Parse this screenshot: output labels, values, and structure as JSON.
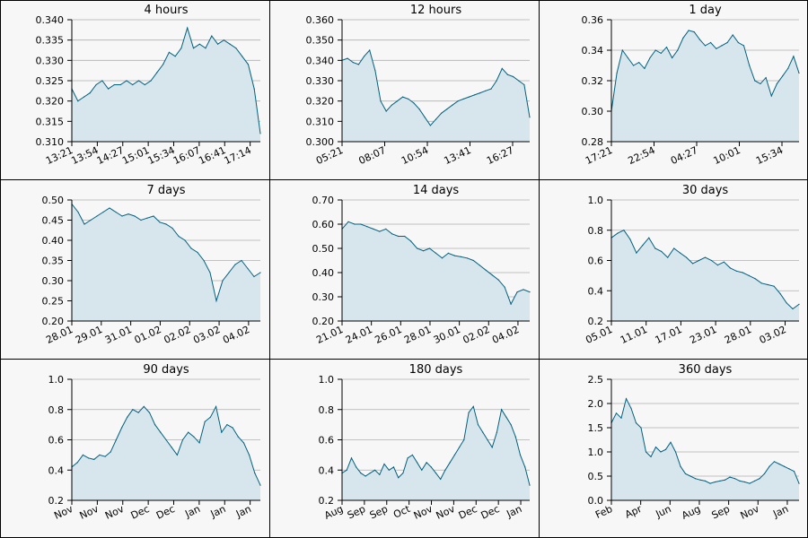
{
  "style": {
    "fill": "#d7e6ed",
    "line": "#00607f",
    "grid": "#b0b0b0",
    "axis": "#000000",
    "background": "#f7f7f7"
  },
  "chart_data": [
    {
      "type": "area",
      "title": "4 hours",
      "ylim": [
        0.31,
        0.34
      ],
      "yticks": [
        0.31,
        0.315,
        0.32,
        0.325,
        0.33,
        0.335,
        0.34
      ],
      "ytick_decimals": 3,
      "xticks": [
        "13:21",
        "13:54",
        "14:27",
        "15:01",
        "15:34",
        "16:07",
        "16:41",
        "17:14"
      ],
      "x": [
        0,
        1,
        2,
        3,
        4,
        5,
        6,
        7,
        8,
        9,
        10,
        11,
        12,
        13,
        14,
        15,
        16,
        17,
        18,
        19,
        20,
        21,
        22,
        23,
        24,
        25,
        26,
        27,
        28,
        29,
        30,
        31
      ],
      "values": [
        0.323,
        0.32,
        0.321,
        0.322,
        0.324,
        0.325,
        0.323,
        0.324,
        0.324,
        0.325,
        0.324,
        0.325,
        0.324,
        0.325,
        0.327,
        0.329,
        0.332,
        0.331,
        0.333,
        0.338,
        0.333,
        0.334,
        0.333,
        0.336,
        0.334,
        0.335,
        0.334,
        0.333,
        0.331,
        0.329,
        0.323,
        0.312
      ]
    },
    {
      "type": "area",
      "title": "12 hours",
      "ylim": [
        0.3,
        0.36
      ],
      "yticks": [
        0.3,
        0.31,
        0.32,
        0.33,
        0.34,
        0.35,
        0.36
      ],
      "ytick_decimals": 3,
      "xticks": [
        "05:21",
        "08:07",
        "10:54",
        "13:41",
        "16:27"
      ],
      "x": [
        0,
        1,
        2,
        3,
        4,
        5,
        6,
        7,
        8,
        9,
        10,
        11,
        12,
        13,
        14,
        15,
        16,
        17,
        18,
        19,
        20,
        21,
        22,
        23,
        24,
        25,
        26,
        27,
        28,
        29,
        30,
        31,
        32,
        33,
        34
      ],
      "values": [
        0.34,
        0.341,
        0.339,
        0.338,
        0.342,
        0.345,
        0.335,
        0.32,
        0.315,
        0.318,
        0.32,
        0.322,
        0.321,
        0.319,
        0.316,
        0.312,
        0.308,
        0.311,
        0.314,
        0.316,
        0.318,
        0.32,
        0.321,
        0.322,
        0.323,
        0.324,
        0.325,
        0.326,
        0.33,
        0.336,
        0.333,
        0.332,
        0.33,
        0.328,
        0.312
      ]
    },
    {
      "type": "area",
      "title": "1 day",
      "ylim": [
        0.28,
        0.36
      ],
      "yticks": [
        0.28,
        0.3,
        0.32,
        0.34,
        0.36
      ],
      "ytick_decimals": 2,
      "xticks": [
        "17:21",
        "22:54",
        "04:27",
        "10:01",
        "15:34"
      ],
      "x": [
        0,
        1,
        2,
        3,
        4,
        5,
        6,
        7,
        8,
        9,
        10,
        11,
        12,
        13,
        14,
        15,
        16,
        17,
        18,
        19,
        20,
        21,
        22,
        23,
        24,
        25,
        26,
        27,
        28,
        29,
        30,
        31,
        32,
        33,
        34
      ],
      "values": [
        0.3,
        0.325,
        0.34,
        0.335,
        0.33,
        0.332,
        0.328,
        0.335,
        0.34,
        0.338,
        0.342,
        0.335,
        0.34,
        0.348,
        0.353,
        0.352,
        0.347,
        0.343,
        0.345,
        0.341,
        0.343,
        0.345,
        0.35,
        0.345,
        0.343,
        0.33,
        0.32,
        0.318,
        0.322,
        0.31,
        0.318,
        0.323,
        0.328,
        0.336,
        0.325
      ]
    },
    {
      "type": "area",
      "title": "7 days",
      "ylim": [
        0.2,
        0.5
      ],
      "yticks": [
        0.2,
        0.25,
        0.3,
        0.35,
        0.4,
        0.45,
        0.5
      ],
      "ytick_decimals": 2,
      "xticks": [
        "28.01",
        "29.01",
        "31.01",
        "01.02",
        "02.02",
        "03.02",
        "04.02"
      ],
      "x": [
        0,
        1,
        2,
        3,
        4,
        5,
        6,
        7,
        8,
        9,
        10,
        11,
        12,
        13,
        14,
        15,
        16,
        17,
        18,
        19,
        20,
        21,
        22,
        23,
        24,
        25,
        26,
        27,
        28,
        29,
        30
      ],
      "values": [
        0.49,
        0.47,
        0.44,
        0.45,
        0.46,
        0.47,
        0.48,
        0.47,
        0.46,
        0.465,
        0.46,
        0.45,
        0.455,
        0.46,
        0.445,
        0.44,
        0.43,
        0.41,
        0.4,
        0.38,
        0.37,
        0.35,
        0.32,
        0.25,
        0.3,
        0.32,
        0.34,
        0.35,
        0.33,
        0.31,
        0.32
      ]
    },
    {
      "type": "area",
      "title": "14 days",
      "ylim": [
        0.2,
        0.7
      ],
      "yticks": [
        0.2,
        0.3,
        0.4,
        0.5,
        0.6,
        0.7
      ],
      "ytick_decimals": 2,
      "xticks": [
        "21.01",
        "24.01",
        "26.01",
        "28.01",
        "30.01",
        "02.02",
        "04.02"
      ],
      "x": [
        0,
        1,
        2,
        3,
        4,
        5,
        6,
        7,
        8,
        9,
        10,
        11,
        12,
        13,
        14,
        15,
        16,
        17,
        18,
        19,
        20,
        21,
        22,
        23,
        24,
        25,
        26,
        27,
        28,
        29,
        30
      ],
      "values": [
        0.58,
        0.61,
        0.6,
        0.6,
        0.59,
        0.58,
        0.57,
        0.58,
        0.56,
        0.55,
        0.55,
        0.53,
        0.5,
        0.49,
        0.5,
        0.48,
        0.46,
        0.48,
        0.47,
        0.465,
        0.46,
        0.45,
        0.43,
        0.41,
        0.39,
        0.37,
        0.34,
        0.27,
        0.32,
        0.33,
        0.32
      ]
    },
    {
      "type": "area",
      "title": "30 days",
      "ylim": [
        0.2,
        1.0
      ],
      "yticks": [
        0.2,
        0.4,
        0.6,
        0.8,
        1.0
      ],
      "ytick_decimals": 1,
      "xticks": [
        "05.01",
        "11.01",
        "17.01",
        "23.01",
        "28.01",
        "03.02"
      ],
      "x": [
        0,
        1,
        2,
        3,
        4,
        5,
        6,
        7,
        8,
        9,
        10,
        11,
        12,
        13,
        14,
        15,
        16,
        17,
        18,
        19,
        20,
        21,
        22,
        23,
        24,
        25,
        26,
        27,
        28,
        29,
        30
      ],
      "values": [
        0.75,
        0.78,
        0.8,
        0.74,
        0.65,
        0.7,
        0.75,
        0.68,
        0.66,
        0.62,
        0.68,
        0.65,
        0.62,
        0.58,
        0.6,
        0.62,
        0.6,
        0.57,
        0.59,
        0.55,
        0.53,
        0.52,
        0.5,
        0.48,
        0.45,
        0.44,
        0.43,
        0.38,
        0.32,
        0.28,
        0.31
      ]
    },
    {
      "type": "area",
      "title": "90 days",
      "ylim": [
        0.2,
        1.0
      ],
      "yticks": [
        0.2,
        0.4,
        0.6,
        0.8,
        1.0
      ],
      "ytick_decimals": 1,
      "xticks": [
        "Nov",
        "Nov",
        "Nov",
        "Dec",
        "Dec",
        "Jan",
        "Jan",
        "Jan"
      ],
      "x": [
        0,
        1,
        2,
        3,
        4,
        5,
        6,
        7,
        8,
        9,
        10,
        11,
        12,
        13,
        14,
        15,
        16,
        17,
        18,
        19,
        20,
        21,
        22,
        23,
        24,
        25,
        26,
        27,
        28,
        29,
        30,
        31,
        32,
        33,
        34
      ],
      "values": [
        0.42,
        0.45,
        0.5,
        0.48,
        0.47,
        0.5,
        0.49,
        0.52,
        0.6,
        0.68,
        0.75,
        0.8,
        0.78,
        0.82,
        0.78,
        0.7,
        0.65,
        0.6,
        0.55,
        0.5,
        0.6,
        0.65,
        0.62,
        0.58,
        0.72,
        0.75,
        0.82,
        0.65,
        0.7,
        0.68,
        0.62,
        0.58,
        0.5,
        0.38,
        0.3
      ]
    },
    {
      "type": "area",
      "title": "180 days",
      "ylim": [
        0.2,
        1.0
      ],
      "yticks": [
        0.2,
        0.4,
        0.6,
        0.8,
        1.0
      ],
      "ytick_decimals": 1,
      "xticks": [
        "Aug",
        "Sep",
        "Sep",
        "Oct",
        "Nov",
        "Nov",
        "Dec",
        "Dec",
        "Jan"
      ],
      "x": [
        0,
        1,
        2,
        3,
        4,
        5,
        6,
        7,
        8,
        9,
        10,
        11,
        12,
        13,
        14,
        15,
        16,
        17,
        18,
        19,
        20,
        21,
        22,
        23,
        24,
        25,
        26,
        27,
        28,
        29,
        30,
        31,
        32,
        33,
        34,
        35,
        36,
        37,
        38,
        39,
        40
      ],
      "values": [
        0.38,
        0.4,
        0.48,
        0.42,
        0.38,
        0.36,
        0.38,
        0.4,
        0.37,
        0.44,
        0.4,
        0.42,
        0.35,
        0.38,
        0.48,
        0.5,
        0.45,
        0.4,
        0.45,
        0.42,
        0.38,
        0.34,
        0.4,
        0.45,
        0.5,
        0.55,
        0.6,
        0.78,
        0.82,
        0.7,
        0.65,
        0.6,
        0.55,
        0.65,
        0.8,
        0.75,
        0.7,
        0.62,
        0.5,
        0.42,
        0.3
      ]
    },
    {
      "type": "area",
      "title": "360 days",
      "ylim": [
        0.0,
        2.5
      ],
      "yticks": [
        0.0,
        0.5,
        1.0,
        1.5,
        2.0,
        2.5
      ],
      "ytick_decimals": 1,
      "xticks": [
        "Feb",
        "Apr",
        "Jun",
        "Aug",
        "Sep",
        "Nov",
        "Jan"
      ],
      "x": [
        0,
        1,
        2,
        3,
        4,
        5,
        6,
        7,
        8,
        9,
        10,
        11,
        12,
        13,
        14,
        15,
        16,
        17,
        18,
        19,
        20,
        21,
        22,
        23,
        24,
        25,
        26,
        27,
        28,
        29,
        30,
        31,
        32,
        33,
        34,
        35,
        36,
        37,
        38
      ],
      "values": [
        1.6,
        1.8,
        1.7,
        2.1,
        1.9,
        1.6,
        1.5,
        1.0,
        0.9,
        1.1,
        1.0,
        1.05,
        1.2,
        1.0,
        0.7,
        0.55,
        0.5,
        0.45,
        0.42,
        0.4,
        0.35,
        0.38,
        0.4,
        0.42,
        0.48,
        0.45,
        0.4,
        0.38,
        0.35,
        0.4,
        0.45,
        0.55,
        0.7,
        0.8,
        0.75,
        0.7,
        0.65,
        0.6,
        0.35
      ]
    }
  ]
}
